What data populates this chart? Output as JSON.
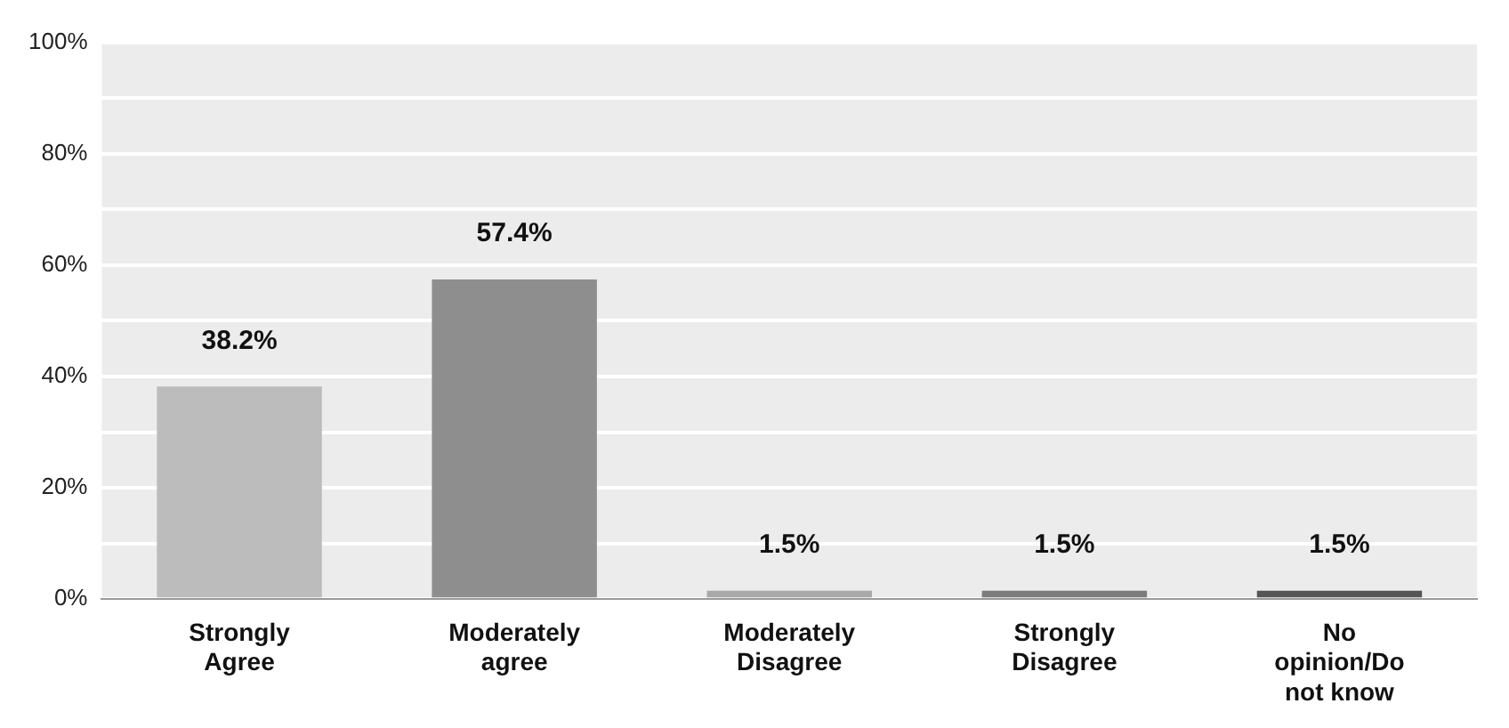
{
  "chart_data": {
    "type": "bar",
    "categories": [
      "Strongly Agree",
      "Moderately agree",
      "Moderately Disagree",
      "Strongly Disagree",
      "No opinion/Do not know"
    ],
    "values": [
      38.2,
      57.4,
      1.5,
      1.5,
      1.5
    ],
    "colors": [
      "#bcbcbc",
      "#8e8e8e",
      "#a9a9a9",
      "#7c7c7c",
      "#555555"
    ],
    "ylim": [
      0,
      100
    ],
    "yticks": [
      {
        "value": 0,
        "label": "0%"
      },
      {
        "value": 10,
        "label": null
      },
      {
        "value": 20,
        "label": "20%"
      },
      {
        "value": 30,
        "label": null
      },
      {
        "value": 40,
        "label": "40%"
      },
      {
        "value": 50,
        "label": null
      },
      {
        "value": 60,
        "label": "60%"
      },
      {
        "value": 70,
        "label": null
      },
      {
        "value": 80,
        "label": "80%"
      },
      {
        "value": 90,
        "label": null
      },
      {
        "value": 100,
        "label": "100%"
      }
    ],
    "value_labels": [
      "38.2%",
      "57.4%",
      "1.5%",
      "1.5%",
      "1.5%"
    ],
    "grid": "y",
    "legend": false
  }
}
